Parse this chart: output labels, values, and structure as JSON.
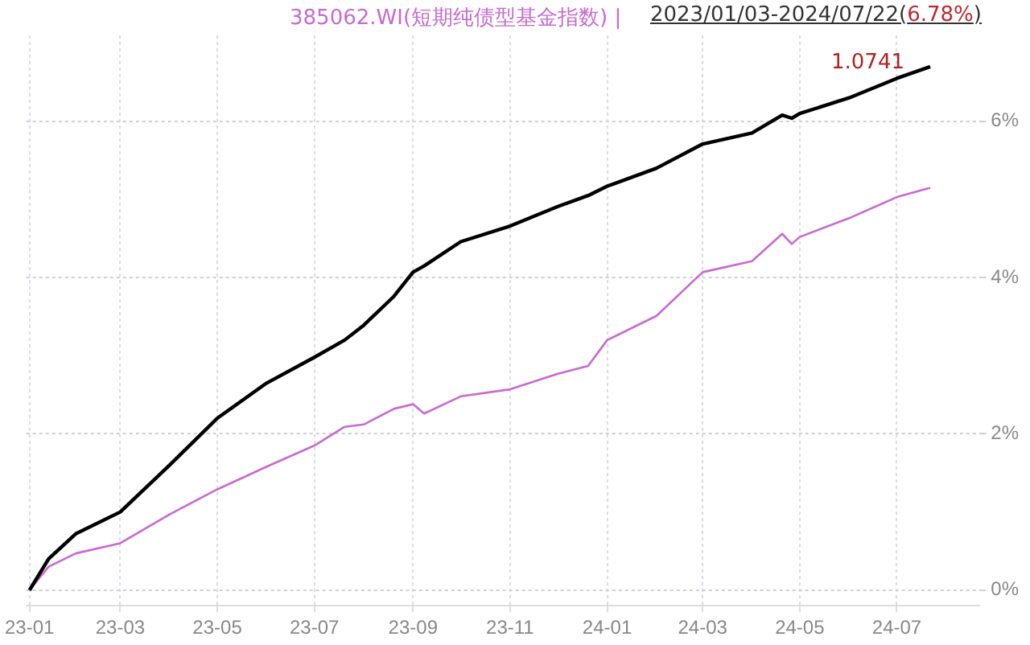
{
  "chart_data": {
    "type": "line",
    "title": "2023/01/03-2024/07/22(6.78%)",
    "x": [
      "2023-01-03",
      "2023-01-15",
      "2023-02-01",
      "2023-03-01",
      "2023-04-01",
      "2023-05-01",
      "2023-06-01",
      "2023-07-01",
      "2023-07-20",
      "2023-08-01",
      "2023-08-20",
      "2023-09-01",
      "2023-09-08",
      "2023-10-01",
      "2023-11-01",
      "2023-12-01",
      "2023-12-20",
      "2024-01-01",
      "2024-02-01",
      "2024-03-01",
      "2024-04-01",
      "2024-04-20",
      "2024-04-26",
      "2024-05-01",
      "2024-06-01",
      "2024-07-01",
      "2024-07-22"
    ],
    "series": [
      {
        "color": "#000000",
        "values": [
          0,
          0.4,
          0.72,
          1.0,
          1.6,
          2.2,
          2.65,
          2.98,
          3.2,
          3.39,
          3.76,
          4.07,
          4.15,
          4.46,
          4.66,
          4.91,
          5.05,
          5.17,
          5.4,
          5.71,
          5.85,
          6.08,
          6.04,
          6.1,
          6.3,
          6.55,
          6.7
        ]
      },
      {
        "name": "385062.WI(短期纯债型基金指数) |",
        "color": "#c86ad0",
        "values": [
          0,
          0.3,
          0.47,
          0.6,
          0.97,
          1.29,
          1.58,
          1.85,
          2.09,
          2.12,
          2.32,
          2.38,
          2.26,
          2.48,
          2.57,
          2.77,
          2.87,
          3.2,
          3.51,
          4.07,
          4.21,
          4.56,
          4.43,
          4.52,
          4.76,
          5.03,
          5.15
        ]
      }
    ],
    "xlim": [
      "2023-01-01",
      "2024-08-22"
    ],
    "xticks": [
      {
        "value": "2023-01-03",
        "label": "23-01"
      },
      {
        "value": "2023-03-01",
        "label": "23-03"
      },
      {
        "value": "2023-05-01",
        "label": "23-05"
      },
      {
        "value": "2023-07-01",
        "label": "23-07"
      },
      {
        "value": "2023-09-01",
        "label": "23-09"
      },
      {
        "value": "2023-11-01",
        "label": "23-11"
      },
      {
        "value": "2024-01-01",
        "label": "24-01"
      },
      {
        "value": "2024-03-01",
        "label": "24-03"
      },
      {
        "value": "2024-05-01",
        "label": "24-05"
      },
      {
        "value": "2024-07-01",
        "label": "24-07"
      }
    ],
    "ylim": [
      -0.2,
      7.1
    ],
    "yticks": [
      {
        "value": 0,
        "label": "0%"
      },
      {
        "value": 2,
        "label": "2%"
      },
      {
        "value": 4,
        "label": "4%"
      },
      {
        "value": 6,
        "label": "6%"
      }
    ],
    "annotations": [
      {
        "text": "1.0741",
        "x": "2024-07-22",
        "y": 6.7
      }
    ],
    "grid": true,
    "legend": "top",
    "marker": "none",
    "line_style": "solid"
  }
}
